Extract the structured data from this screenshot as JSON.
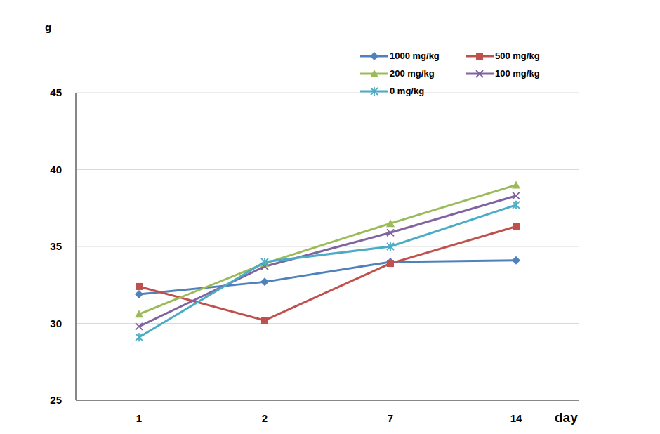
{
  "chart_data": {
    "type": "line",
    "x_label": "day",
    "y_label": "g",
    "categories": [
      "1",
      "2",
      "7",
      "14"
    ],
    "series": [
      {
        "name": "1000 mg/kg",
        "color": "#4f81bd",
        "marker": "diamond",
        "values": [
          31.9,
          32.7,
          34.0,
          34.1
        ]
      },
      {
        "name": "500 mg/kg",
        "color": "#c0504d",
        "marker": "square",
        "values": [
          32.4,
          30.2,
          33.9,
          36.3
        ]
      },
      {
        "name": "200 mg/kg",
        "color": "#9bbb59",
        "marker": "triangle",
        "values": [
          30.6,
          33.9,
          36.5,
          39.0
        ]
      },
      {
        "name": "100 mg/kg",
        "color": "#8064a2",
        "marker": "cross",
        "values": [
          29.8,
          33.7,
          35.9,
          38.3
        ]
      },
      {
        "name": "0 mg/kg",
        "color": "#4bacc6",
        "marker": "star",
        "values": [
          29.1,
          34.0,
          35.0,
          37.7
        ]
      }
    ],
    "ylim": [
      25,
      45
    ],
    "yticks": [
      25,
      30,
      35,
      40,
      45
    ],
    "grid": true,
    "legend": "upper right"
  }
}
